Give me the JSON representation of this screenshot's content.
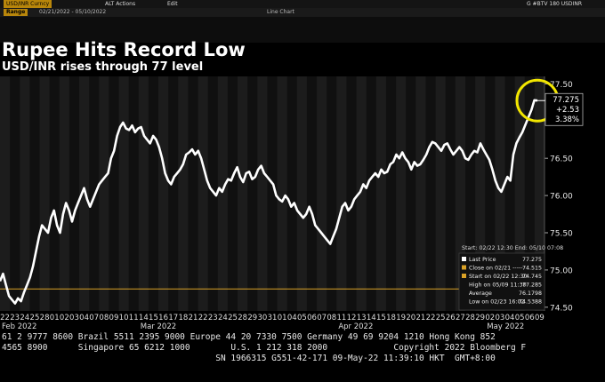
{
  "app": {
    "row1_left": "USD/INR Curncy",
    "row1_mid": "ALT Actions",
    "row1_edit": "Edit",
    "row1_right": "G #BTV 180 USDINR",
    "row2_tag": "Range",
    "row2_text": "02/21/2022 - 05/10/2022",
    "row2_right": "Line Chart"
  },
  "title": "Rupee Hits Record Low",
  "subtitle": "USD/INR rises through 77 level",
  "price_box": {
    "last": "77.275",
    "change": "+2.53",
    "pct": "3.38%"
  },
  "legend": {
    "range": "Start: 02/22 12:30 End: 05/10 07:08",
    "rows": [
      {
        "label": "Last Price",
        "value": "77.275",
        "color": "#ffffff"
      },
      {
        "label": "Close on 02/21 -----",
        "value": "74.515",
        "color": "#d9a126"
      },
      {
        "label": "Start on 02/22 12:30",
        "value": "74.745",
        "color": "#d9a126"
      },
      {
        "label": "High on 05/09 11:30",
        "value": "77.285",
        "color": ""
      },
      {
        "label": "Average",
        "value": "76.1798",
        "color": ""
      },
      {
        "label": "Low on 02/23 16:02",
        "value": "74.5388",
        "color": ""
      }
    ]
  },
  "footer": {
    "line1": "61 2 9777 8600 Brazil 5511 2395 9000 Europe 44 20 7330 7500 Germany 49 69 9204 1210 Hong Kong 852",
    "line2": "4565 8900      Singapore 65 6212 1000        U.S. 1 212 318 2000             Copyright 2022 Bloomberg F",
    "line3": "                                          SN 1966315 G551-42-171 09-May-22 11:39:10 HKT  GMT+8:00"
  },
  "colors": {
    "line": "#ffffff",
    "reference": "#d9a126",
    "highlight_circle": "#f2e600",
    "bar_a": "#1c1c1c",
    "bar_b": "#101010"
  },
  "chart_data": {
    "type": "line",
    "title": "Rupee Hits Record Low",
    "subtitle": "USD/INR rises through 77 level",
    "ylim": [
      74.45,
      77.6
    ],
    "yticks": [
      74.5,
      75.0,
      75.5,
      76.0,
      76.5,
      77.0,
      77.5
    ],
    "ytick_labels": [
      "74.50",
      "75.00",
      "75.50",
      "76.00",
      "76.50",
      "77.00",
      "77.50"
    ],
    "xticks": [
      "22",
      "23",
      "24",
      "25",
      "28",
      "01",
      "02",
      "03",
      "04",
      "07",
      "08",
      "09",
      "10",
      "11",
      "14",
      "15",
      "16",
      "17",
      "18",
      "21",
      "22",
      "23",
      "24",
      "25",
      "28",
      "29",
      "30",
      "31",
      "01",
      "04",
      "05",
      "06",
      "07",
      "08",
      "11",
      "12",
      "13",
      "14",
      "15",
      "18",
      "19",
      "20",
      "21",
      "22",
      "25",
      "26",
      "27",
      "28",
      "29",
      "02",
      "03",
      "04",
      "05",
      "06",
      "09"
    ],
    "month_labels": [
      {
        "label": "Feb 2022",
        "at": "22"
      },
      {
        "label": "Mar 2022",
        "at": "14"
      },
      {
        "label": "Apr 2022",
        "at": "08"
      },
      {
        "label": "May 2022",
        "at": "02"
      }
    ],
    "reference_line": 74.745,
    "series": [
      {
        "values": [
          74.85,
          74.95,
          74.8,
          74.65,
          74.6,
          74.55,
          74.62,
          74.58,
          74.7,
          74.8,
          74.9,
          75.05,
          75.25,
          75.45,
          75.6,
          75.55,
          75.5,
          75.7,
          75.8,
          75.6,
          75.5,
          75.75,
          75.9,
          75.8,
          75.65,
          75.8,
          75.9,
          76.0,
          76.1,
          75.95,
          75.85,
          75.95,
          76.05,
          76.15,
          76.2,
          76.25,
          76.3,
          76.5,
          76.6,
          76.8,
          76.92,
          76.98,
          76.9,
          76.88,
          76.94,
          76.85,
          76.9,
          76.92,
          76.8,
          76.75,
          76.7,
          76.8,
          76.75,
          76.65,
          76.5,
          76.3,
          76.2,
          76.15,
          76.25,
          76.3,
          76.35,
          76.42,
          76.55,
          76.58,
          76.62,
          76.55,
          76.6,
          76.5,
          76.35,
          76.2,
          76.1,
          76.05,
          76.0,
          76.1,
          76.05,
          76.15,
          76.22,
          76.2,
          76.3,
          76.38,
          76.25,
          76.18,
          76.3,
          76.32,
          76.22,
          76.25,
          76.35,
          76.4,
          76.3,
          76.25,
          76.2,
          76.15,
          76.0,
          75.95,
          75.92,
          76.0,
          75.95,
          75.85,
          75.9,
          75.8,
          75.75,
          75.7,
          75.75,
          75.85,
          75.75,
          75.6,
          75.55,
          75.5,
          75.45,
          75.4,
          75.35,
          75.45,
          75.55,
          75.7,
          75.85,
          75.9,
          75.8,
          75.85,
          75.95,
          76.0,
          76.05,
          76.15,
          76.1,
          76.2,
          76.25,
          76.3,
          76.25,
          76.35,
          76.3,
          76.32,
          76.42,
          76.45,
          76.55,
          76.5,
          76.58,
          76.5,
          76.45,
          76.35,
          76.45,
          76.4,
          76.42,
          76.48,
          76.55,
          76.65,
          76.72,
          76.7,
          76.65,
          76.6,
          76.68,
          76.7,
          76.62,
          76.55,
          76.6,
          76.65,
          76.6,
          76.5,
          76.48,
          76.55,
          76.6,
          76.58,
          76.7,
          76.62,
          76.55,
          76.48,
          76.35,
          76.2,
          76.1,
          76.05,
          76.15,
          76.25,
          76.2,
          76.55,
          76.7,
          76.78,
          76.85,
          76.95,
          77.05,
          77.15,
          77.28,
          77.275
        ]
      }
    ]
  }
}
